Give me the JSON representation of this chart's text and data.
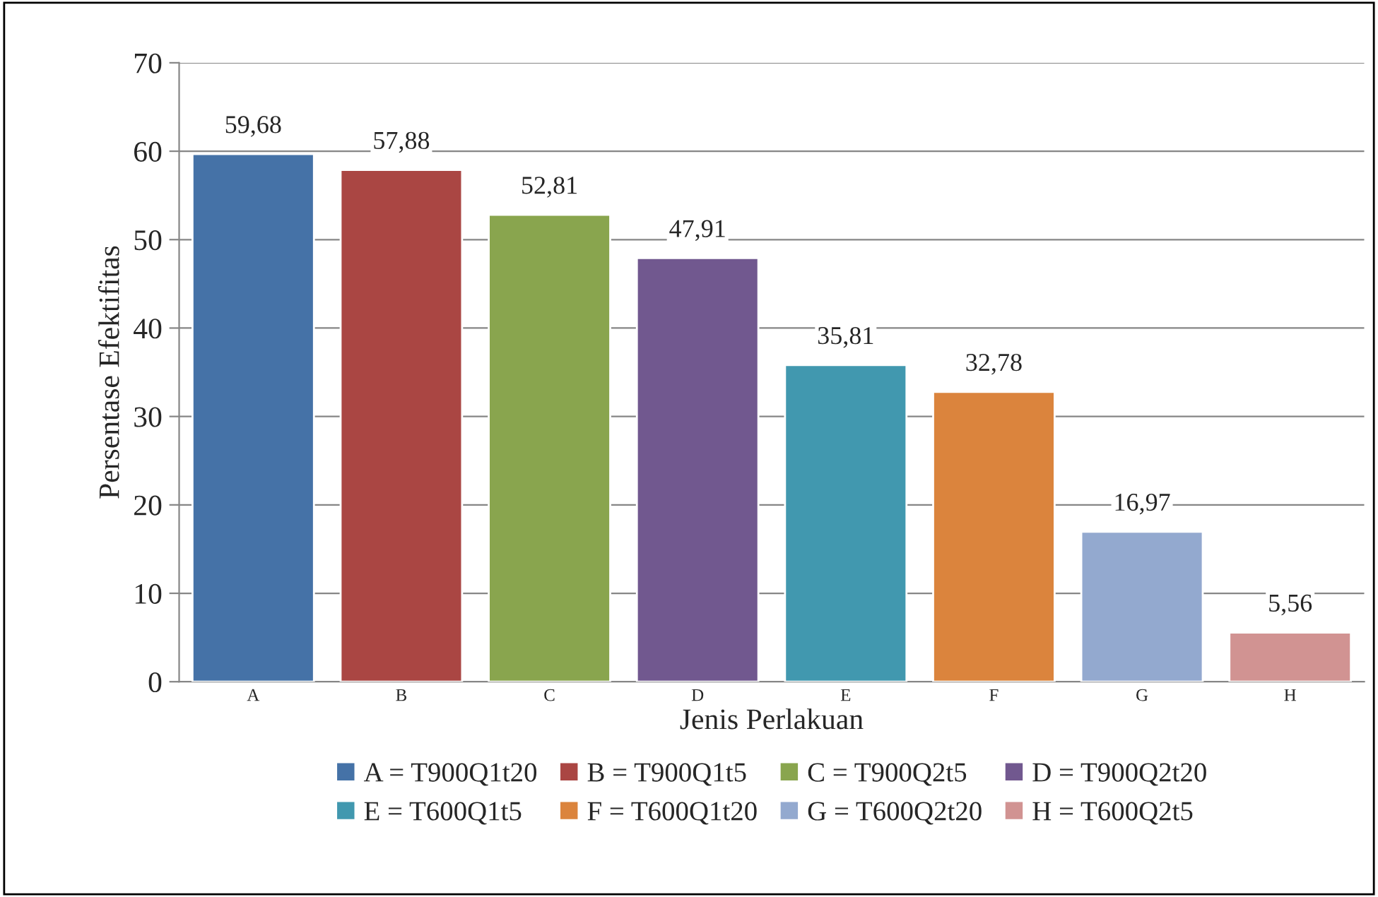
{
  "chart_data": {
    "type": "bar",
    "xlabel": "Jenis Perlakuan",
    "ylabel": "Persentase Efektifitas",
    "categories": [
      "A",
      "B",
      "C",
      "D",
      "E",
      "F",
      "G",
      "H"
    ],
    "series": [
      {
        "name": "A = T900Q1t20",
        "color": "#4572a7",
        "values": [
          59.68,
          null,
          null,
          null,
          null,
          null,
          null,
          null
        ],
        "value_labels": [
          "59,68",
          null,
          null,
          null,
          null,
          null,
          null,
          null
        ]
      },
      {
        "name": "B = T900Q1t5",
        "color": "#aa4643",
        "values": [
          null,
          57.88,
          null,
          null,
          null,
          null,
          null,
          null
        ],
        "value_labels": [
          null,
          "57,88",
          null,
          null,
          null,
          null,
          null,
          null
        ]
      },
      {
        "name": "C = T900Q2t5",
        "color": "#89a54e",
        "values": [
          null,
          null,
          52.81,
          null,
          null,
          null,
          null,
          null
        ],
        "value_labels": [
          null,
          null,
          "52,81",
          null,
          null,
          null,
          null,
          null
        ]
      },
      {
        "name": "D = T900Q2t20",
        "color": "#71588f",
        "values": [
          null,
          null,
          null,
          47.91,
          null,
          null,
          null,
          null
        ],
        "value_labels": [
          null,
          null,
          null,
          "47,91",
          null,
          null,
          null,
          null
        ]
      },
      {
        "name": "E = T600Q1t5",
        "color": "#4198af",
        "values": [
          null,
          null,
          null,
          null,
          35.81,
          null,
          null,
          null
        ],
        "value_labels": [
          null,
          null,
          null,
          null,
          "35,81",
          null,
          null,
          null
        ]
      },
      {
        "name": "F = T600Q1t20",
        "color": "#db843d",
        "values": [
          null,
          null,
          null,
          null,
          null,
          32.78,
          null,
          null
        ],
        "value_labels": [
          null,
          null,
          null,
          null,
          null,
          "32,78",
          null,
          null
        ]
      },
      {
        "name": "G = T600Q2t20",
        "color": "#93a9cf",
        "values": [
          null,
          null,
          null,
          null,
          null,
          null,
          16.97,
          null
        ],
        "value_labels": [
          null,
          null,
          null,
          null,
          null,
          null,
          "16,97",
          null
        ]
      },
      {
        "name": "H = T600Q2t5",
        "color": "#d19392",
        "values": [
          null,
          null,
          null,
          null,
          null,
          null,
          null,
          5.56
        ],
        "value_labels": [
          null,
          null,
          null,
          null,
          null,
          null,
          null,
          "5,56"
        ]
      }
    ],
    "ylim": [
      0,
      70
    ],
    "yticks": [
      0,
      10,
      20,
      30,
      40,
      50,
      60,
      70
    ],
    "grid": "y",
    "legend": "bottom"
  }
}
